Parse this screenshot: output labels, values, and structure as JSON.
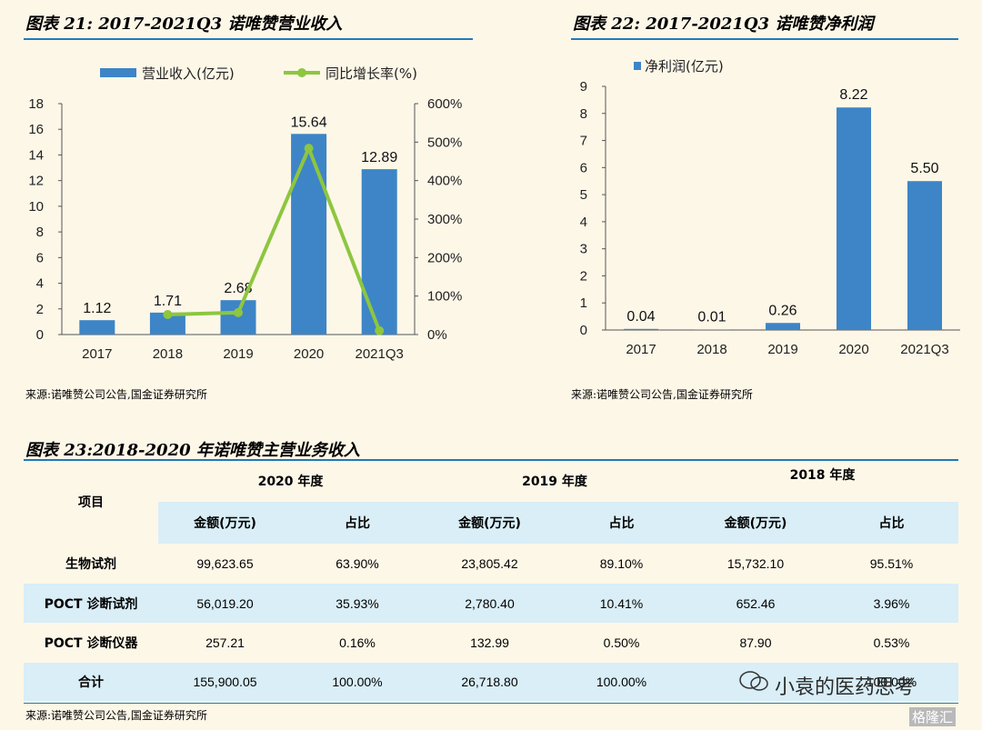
{
  "fig21": {
    "title": "图表 21:  2017-2021Q3 诺唯赞营业收入",
    "source": "来源:诺唯赞公司公告,国金证券研究所"
  },
  "fig22": {
    "title": "图表 22:  2017-2021Q3 诺唯赞净利润",
    "source": "来源:诺唯赞公司公告,国金证券研究所"
  },
  "fig23": {
    "title": "图表 23:2018-2020 年诺唯赞主营业务收入",
    "source": "来源:诺唯赞公司公告,国金证券研究所"
  },
  "chart_data": [
    {
      "type": "bar+line",
      "title": "图表 21:  2017-2021Q3 诺唯赞营业收入",
      "categories": [
        "2017",
        "2018",
        "2019",
        "2020",
        "2021Q3"
      ],
      "series": [
        {
          "name": "营业收入(亿元)",
          "type": "bar",
          "axis": "left",
          "values": [
            1.12,
            1.71,
            2.68,
            15.64,
            12.89
          ],
          "labels": [
            "1.12",
            "1.71",
            "2.68",
            "15.64",
            "12.89"
          ],
          "color": "#3d85c6"
        },
        {
          "name": "同比增长率(%)",
          "type": "line",
          "axis": "right",
          "values": [
            null,
            52,
            57,
            484,
            10
          ],
          "color": "#8dc63f"
        }
      ],
      "y_left": {
        "min": 0,
        "max": 18,
        "ticks": [
          "0",
          "2",
          "4",
          "6",
          "8",
          "10",
          "12",
          "14",
          "16",
          "18"
        ]
      },
      "y_right": {
        "min": 0,
        "max": 600,
        "ticks": [
          "0%",
          "100%",
          "200%",
          "300%",
          "400%",
          "500%",
          "600%"
        ]
      },
      "legend_position": "top"
    },
    {
      "type": "bar",
      "title": "图表 22:  2017-2021Q3 诺唯赞净利润",
      "categories": [
        "2017",
        "2018",
        "2019",
        "2020",
        "2021Q3"
      ],
      "series": [
        {
          "name": "净利润(亿元)",
          "values": [
            0.04,
            0.01,
            0.26,
            8.22,
            5.5
          ],
          "labels": [
            "0.04",
            "0.01",
            "0.26",
            "8.22",
            "5.50"
          ],
          "color": "#3d85c6"
        }
      ],
      "y": {
        "min": 0,
        "max": 9,
        "ticks": [
          "0",
          "1",
          "2",
          "3",
          "4",
          "5",
          "6",
          "7",
          "8",
          "9"
        ]
      },
      "legend_position": "top-left"
    },
    {
      "type": "table",
      "title": "图表 23:2018-2020 年诺唯赞主营业务收入",
      "item_header": "项目",
      "years": [
        "2020 年度",
        "2019 年度",
        "2018 年度"
      ],
      "sub_headers": [
        "金额(万元)",
        "占比",
        "金额(万元)",
        "占比",
        "金额(万元)",
        "占比"
      ],
      "rows": [
        {
          "label": "生物试剂",
          "cells": [
            "99,623.65",
            "63.90%",
            "23,805.42",
            "89.10%",
            "15,732.10",
            "95.51%"
          ]
        },
        {
          "label": "POCT 诊断试剂",
          "cells": [
            "56,019.20",
            "35.93%",
            "2,780.40",
            "10.41%",
            "652.46",
            "3.96%"
          ]
        },
        {
          "label": "POCT 诊断仪器",
          "cells": [
            "257.21",
            "0.16%",
            "132.99",
            "0.50%",
            "87.90",
            "0.53%"
          ]
        },
        {
          "label": "合计",
          "cells": [
            "155,900.05",
            "100.00%",
            "26,718.80",
            "100.00%",
            "",
            "100.00%"
          ]
        }
      ]
    }
  ],
  "watermark": {
    "text1": "小袁的医药思考",
    "text2": "格隆汇"
  }
}
